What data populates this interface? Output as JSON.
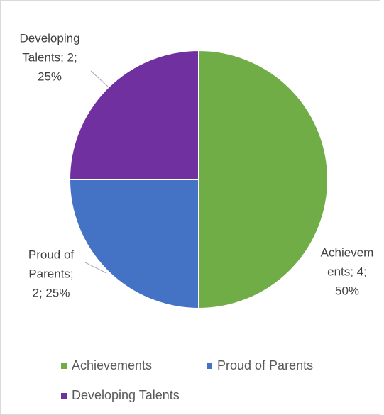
{
  "chart_data": {
    "type": "pie",
    "categories": [
      "Achievements",
      "Proud of Parents",
      "Developing Talents"
    ],
    "values": [
      4,
      2,
      2
    ],
    "value_labels": [
      [
        "Achievem",
        "ents; 4;",
        "50%"
      ],
      [
        "Proud of",
        "Parents;",
        "2; 25%"
      ],
      [
        "Developing",
        "Talents; 2;",
        "25%"
      ]
    ],
    "colors": [
      "#70ad47",
      "#4472c4",
      "#7030a0"
    ]
  }
}
